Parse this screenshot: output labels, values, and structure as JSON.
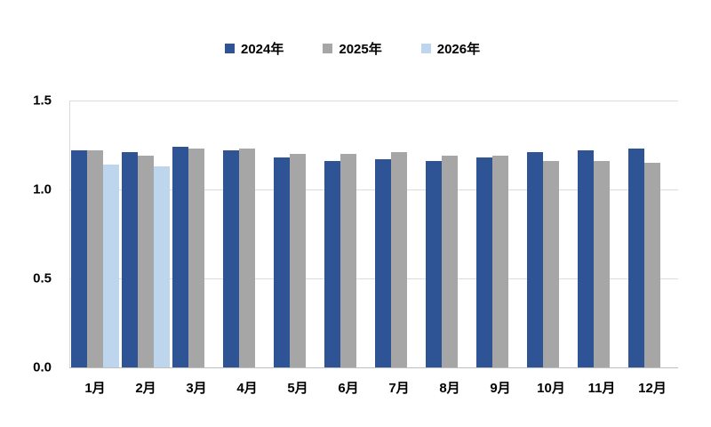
{
  "legend": {
    "items": [
      {
        "label": "2024年",
        "color": "#2F5496"
      },
      {
        "label": "2025年",
        "color": "#A6A6A6"
      },
      {
        "label": "2026年",
        "color": "#BDD6EE"
      }
    ]
  },
  "colors": {
    "series_2024": "#2F5496",
    "series_2025": "#A6A6A6",
    "series_2026": "#BDD6EE",
    "gridline": "#DCDCDC",
    "axis_line": "#BFBFBF",
    "text": "#000000",
    "background": "#FFFFFF"
  },
  "chart_data": {
    "type": "bar",
    "title": "",
    "xlabel": "",
    "ylabel": "",
    "categories": [
      "1月",
      "2月",
      "3月",
      "4月",
      "5月",
      "6月",
      "7月",
      "8月",
      "9月",
      "10月",
      "11月",
      "12月"
    ],
    "series": [
      {
        "name": "2024年",
        "color": "#2F5496",
        "values": [
          1.22,
          1.21,
          1.24,
          1.22,
          1.18,
          1.16,
          1.17,
          1.16,
          1.18,
          1.21,
          1.22,
          1.23
        ]
      },
      {
        "name": "2025年",
        "color": "#A6A6A6",
        "values": [
          1.22,
          1.19,
          1.23,
          1.23,
          1.2,
          1.2,
          1.21,
          1.19,
          1.19,
          1.16,
          1.16,
          1.15
        ]
      },
      {
        "name": "2026年",
        "color": "#BDD6EE",
        "values": [
          1.14,
          1.13,
          null,
          null,
          null,
          null,
          null,
          null,
          null,
          null,
          null,
          null
        ]
      }
    ],
    "ylim": [
      0.0,
      1.5
    ],
    "yticks": [
      0.0,
      0.5,
      1.0,
      1.5
    ],
    "ytick_labels": [
      "0.0",
      "0.5",
      "1.0",
      "1.5"
    ],
    "grid": true,
    "legend_position": "top"
  }
}
